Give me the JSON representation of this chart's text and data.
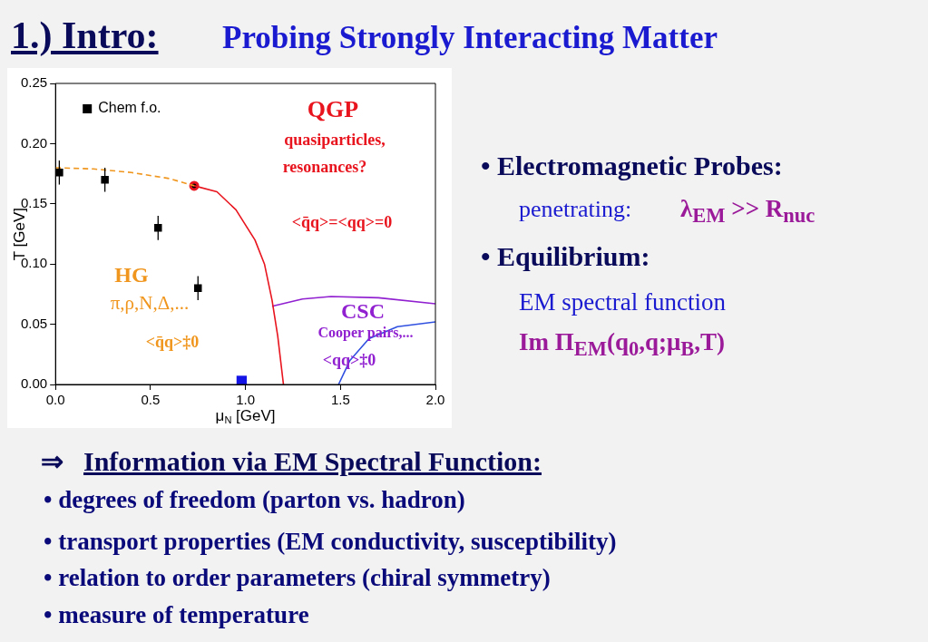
{
  "chart_data": {
    "type": "scatter",
    "title": "1.) Intro:",
    "subtitle": "Probing Strongly Interacting Matter",
    "xlabel": "μ$_{N}$ [GeV]",
    "ylabel": "T [GeV]",
    "xlim": [
      0,
      2
    ],
    "xticks": [
      {
        "value": 0,
        "label": "0.0"
      },
      {
        "value": 0.5,
        "label": "0.5"
      },
      {
        "value": 1,
        "label": "1.0"
      },
      {
        "value": 1.5,
        "label": "1.5"
      },
      {
        "value": 2,
        "label": "2.0"
      }
    ],
    "ylim": [
      0,
      0.25
    ],
    "yticks": [
      {
        "value": 0,
        "label": "0.00"
      },
      {
        "value": 0.05,
        "label": "0.05"
      },
      {
        "value": 0.1,
        "label": "0.10"
      },
      {
        "value": 0.15,
        "label": "0.15"
      },
      {
        "value": 0.2,
        "label": "0.20"
      },
      {
        "value": 0.25,
        "label": "0.25"
      }
    ],
    "grid": false,
    "legend": "top left",
    "series": [
      {
        "name": "Chem f.o.",
        "type": "scatter",
        "marker": "square",
        "color": "#000000",
        "x": [
          0.02,
          0.26,
          0.54,
          0.75
        ],
        "values": [
          0.176,
          0.17,
          0.13,
          0.08
        ],
        "errors": [
          0.01,
          0.01,
          0.01,
          0.01
        ]
      },
      {
        "type": "line",
        "marker": "none",
        "line_style": "dashed",
        "color": "#f0961e",
        "x": [
          0,
          0.2,
          0.4,
          0.6,
          0.73
        ],
        "values": [
          0.18,
          0.179,
          0.176,
          0.171,
          0.165
        ]
      },
      {
        "type": "line",
        "marker": "none",
        "line_style": "solid",
        "color": "#e8141e",
        "x": [
          0.73,
          0.85,
          0.95,
          1.05,
          1.1,
          1.14,
          1.17,
          1.2
        ],
        "values": [
          0.165,
          0.16,
          0.145,
          0.12,
          0.1,
          0.07,
          0.04,
          0
        ]
      },
      {
        "type": "scatter",
        "marker": "circle",
        "color": "#e8141e",
        "x": [
          0.73
        ],
        "values": [
          0.165
        ]
      },
      {
        "type": "line",
        "marker": "none",
        "line_style": "solid",
        "color": "#9020d0",
        "x": [
          1.14,
          1.3,
          1.45,
          1.7,
          2.0
        ],
        "values": [
          0.065,
          0.071,
          0.073,
          0.072,
          0.067
        ]
      },
      {
        "type": "line",
        "marker": "none",
        "line_style": "solid",
        "color": "#3050e0",
        "x": [
          1.49,
          1.55,
          1.65,
          1.8,
          2.0
        ],
        "values": [
          0,
          0.02,
          0.038,
          0.048,
          0.052
        ]
      },
      {
        "type": "scatter",
        "marker": "square",
        "color": "#1414e6",
        "x": [
          0.98
        ],
        "values": [
          0.003
        ]
      }
    ],
    "annotations": [
      "QGP",
      "quasiparticles,",
      "resonances?",
      "<q̄q>=<qq>=0",
      "HG",
      "π,ρ,N,Δ,...",
      "<q̄q>‡0",
      "CSC",
      "Cooper pairs,...",
      "<qq>‡0",
      "• Electromagnetic Probes:",
      "penetrating:",
      "λ$_{EM}$ >> R$_{nuc}$",
      "• Equilibrium:",
      "EM spectral function",
      "Im Π$_{EM}$(q$_{0}$,q;μ$_{B}$,T)",
      "⇒",
      "Information via EM Spectral Function:",
      "• degrees of freedom  (parton vs. hadron)",
      "• transport properties (EM conductivity, susceptibility)",
      "• relation to order parameters (chiral symmetry)",
      "• measure of temperature"
    ]
  }
}
